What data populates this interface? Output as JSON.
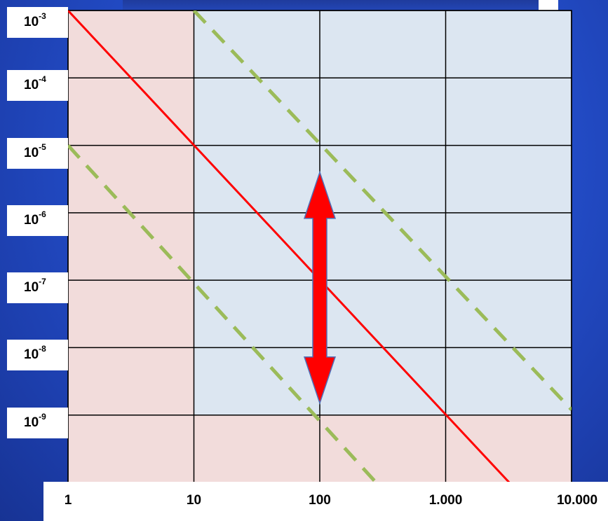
{
  "chart_data": {
    "type": "line",
    "x_scale": "log",
    "y_scale": "log",
    "x_ticks": [
      {
        "value": 1,
        "label": "1"
      },
      {
        "value": 10,
        "label": "10"
      },
      {
        "value": 100,
        "label": "100"
      },
      {
        "value": 1000,
        "label": "1.000"
      },
      {
        "value": 10000,
        "label": "10.000"
      }
    ],
    "y_ticks": [
      {
        "value": 0.001,
        "base": "10",
        "exp": "-3"
      },
      {
        "value": 0.0001,
        "base": "10",
        "exp": "-4"
      },
      {
        "value": 1e-05,
        "base": "10",
        "exp": "-5"
      },
      {
        "value": 1e-06,
        "base": "10",
        "exp": "-6"
      },
      {
        "value": 1e-07,
        "base": "10",
        "exp": "-7"
      },
      {
        "value": 1e-08,
        "base": "10",
        "exp": "-8"
      },
      {
        "value": 1e-09,
        "base": "10",
        "exp": "-9"
      }
    ],
    "xlim": [
      1,
      10000
    ],
    "ylim": [
      1e-10,
      0.001
    ],
    "grid": true,
    "regions": [
      {
        "name": "excluded-low-x",
        "x": [
          1,
          10
        ],
        "y": [
          1e-10,
          0.001
        ],
        "color": "#f2dcdb"
      },
      {
        "name": "excluded-low-y",
        "x": [
          10,
          10000
        ],
        "y": [
          1e-10,
          1e-09
        ],
        "color": "#f2dcdb"
      },
      {
        "name": "allowed",
        "x": [
          10,
          10000
        ],
        "y": [
          1e-09,
          0.001
        ],
        "color": "#dce6f1"
      }
    ],
    "series": [
      {
        "style": "solid",
        "color": "#ff0000",
        "points": [
          [
            1,
            0.001
          ],
          [
            3200,
            1e-10
          ]
        ]
      },
      {
        "style": "dashed",
        "color": "#9bbb59",
        "points": [
          [
            10,
            0.001
          ],
          [
            10000,
            1.2e-09
          ]
        ]
      },
      {
        "style": "dashed",
        "color": "#9bbb59",
        "points": [
          [
            1,
            1e-05
          ],
          [
            280,
            1e-10
          ]
        ]
      }
    ],
    "annotations": [
      {
        "type": "double-arrow",
        "color": "#ff0000",
        "x": 100,
        "y_from": 4e-06,
        "y_to": 1.5e-09
      }
    ]
  }
}
